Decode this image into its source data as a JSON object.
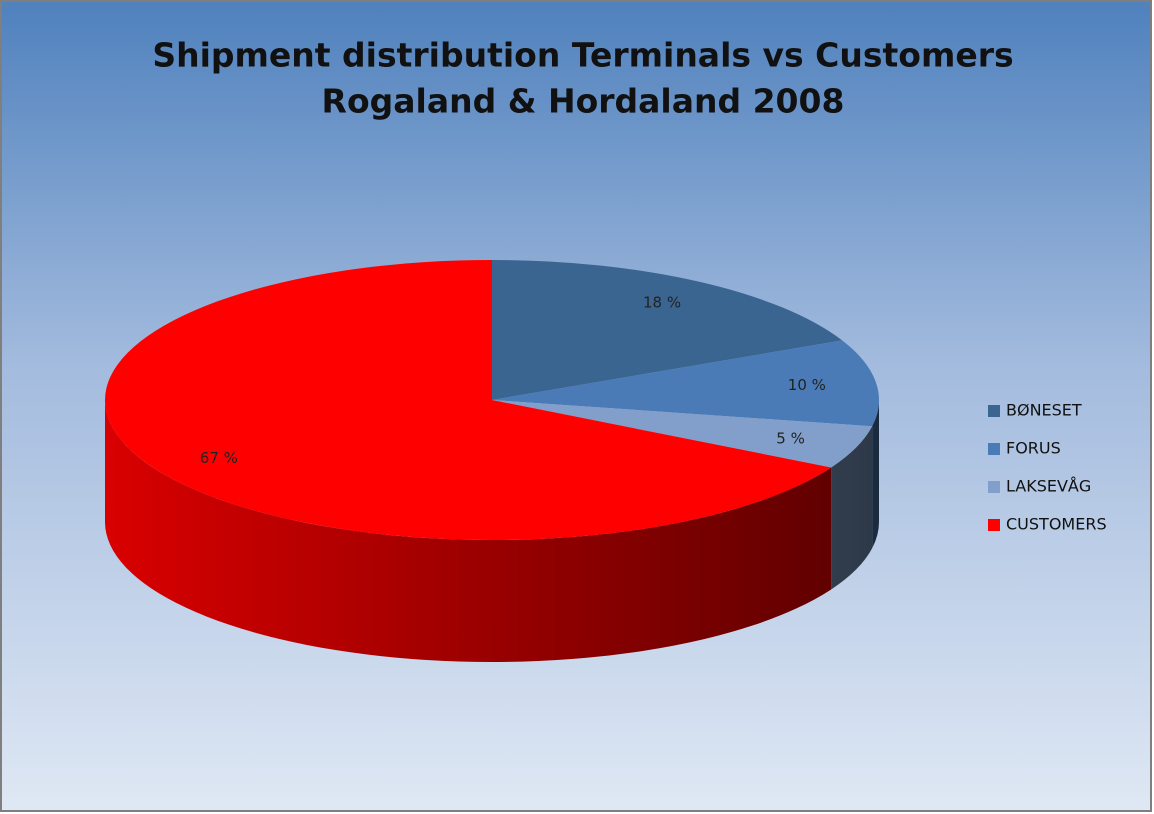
{
  "chart_data": {
    "type": "pie3d",
    "title": "Shipment distribution Terminals vs Customers",
    "subtitle": "Rogaland & Hordaland 2008",
    "categories": [
      "BØNESET",
      "FORUS",
      "LAKSEVÅG",
      "CUSTOMERS"
    ],
    "values": [
      18,
      10,
      5,
      67
    ],
    "value_labels": [
      "18 %",
      "10 %",
      "5 %",
      "67 %"
    ],
    "colors": [
      "#3b6591",
      "#4a7bb7",
      "#819fca",
      "#ff0000"
    ],
    "legend": "right"
  }
}
